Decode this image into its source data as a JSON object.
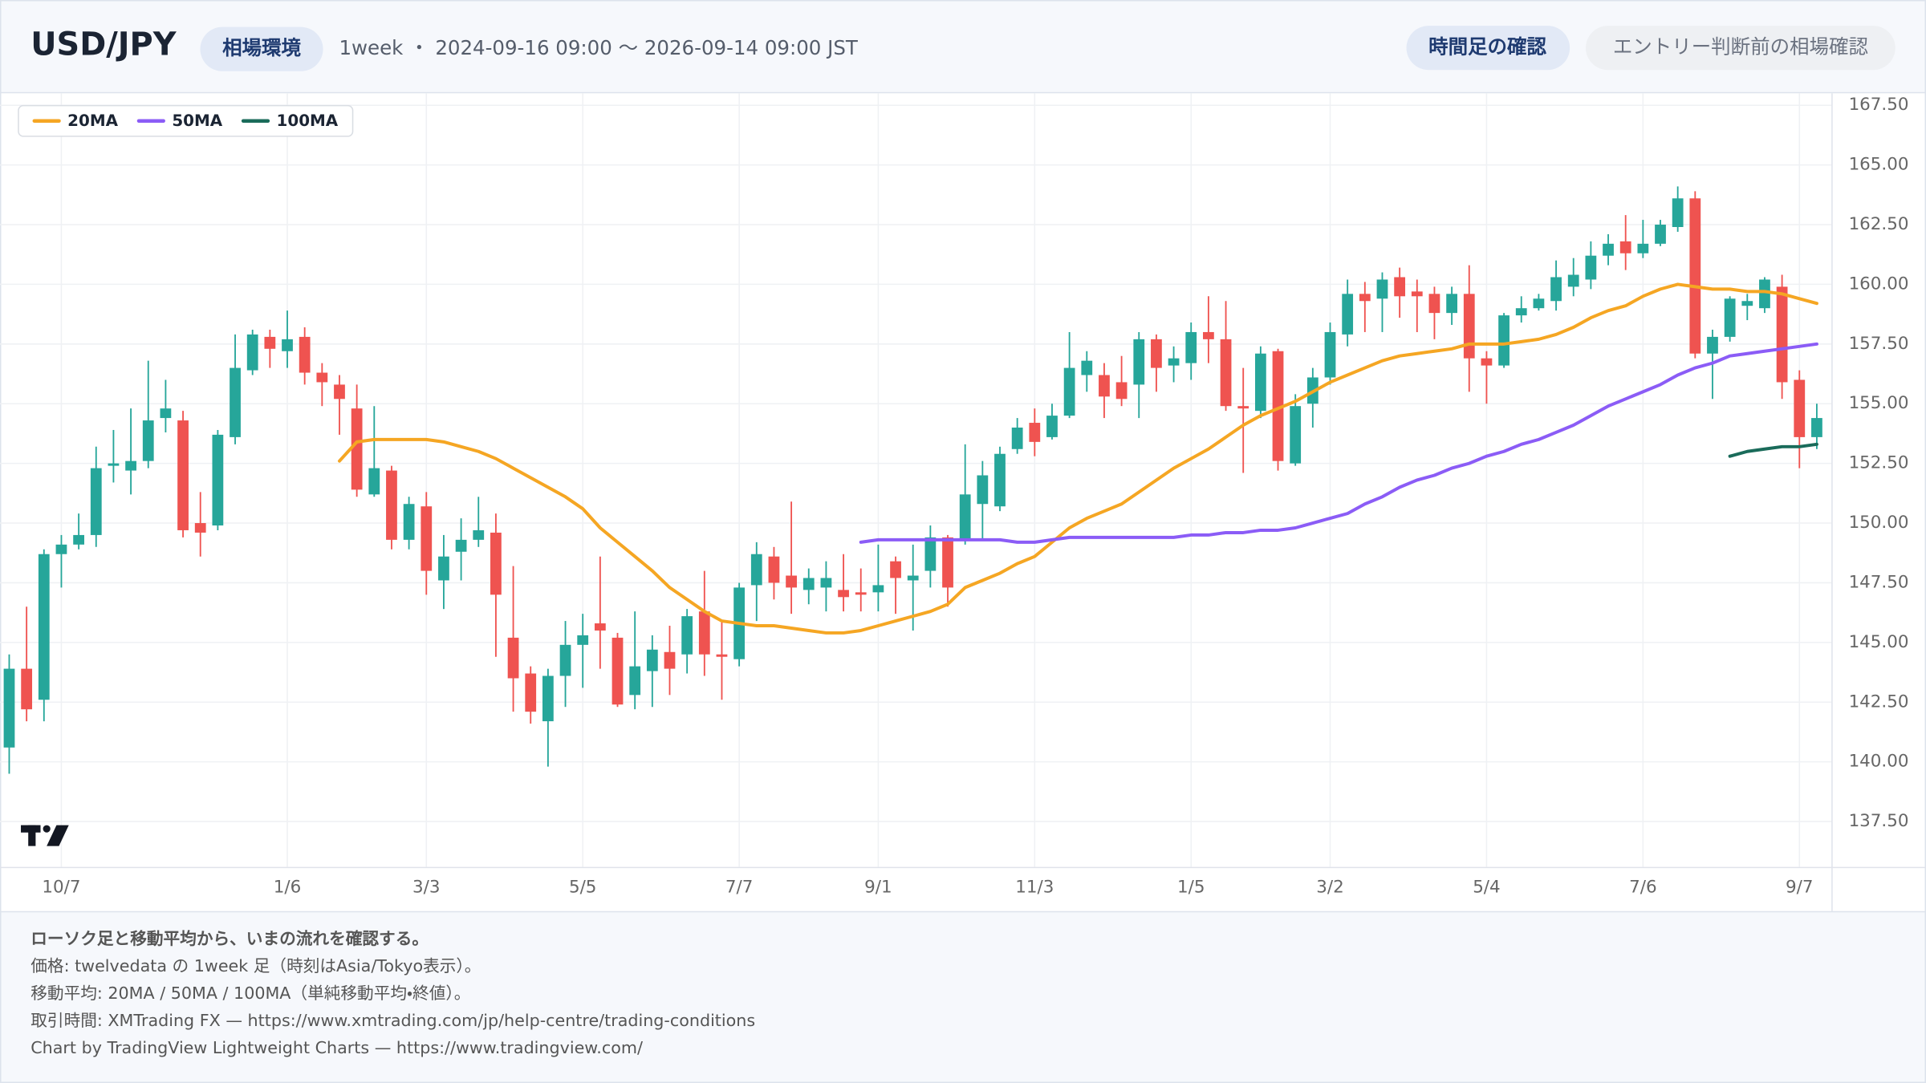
{
  "header": {
    "title": "USD/JPY",
    "badge": "相場環境",
    "subtitle": "1week ・ 2024-09-16 09:00 〜 2026-09-14 09:00 JST",
    "tags": [
      "時間足の確認",
      "エントリー判断前の相場確認"
    ]
  },
  "chart_data": {
    "type": "candlestick",
    "categories": [
      null,
      null,
      null,
      "10/7",
      null,
      null,
      null,
      null,
      null,
      null,
      null,
      null,
      null,
      null,
      null,
      null,
      "1/6",
      null,
      null,
      null,
      null,
      null,
      null,
      null,
      "3/3",
      null,
      null,
      null,
      null,
      null,
      null,
      null,
      null,
      "5/5",
      null,
      null,
      null,
      null,
      null,
      null,
      null,
      null,
      "7/7",
      null,
      null,
      null,
      null,
      null,
      null,
      null,
      "9/1",
      null,
      null,
      null,
      null,
      null,
      null,
      null,
      null,
      "11/3",
      null,
      null,
      null,
      null,
      null,
      null,
      null,
      null,
      "1/5",
      null,
      null,
      null,
      null,
      null,
      null,
      null,
      "3/2",
      null,
      null,
      null,
      null,
      null,
      null,
      null,
      null,
      "5/4",
      null,
      null,
      null,
      null,
      null,
      null,
      null,
      null,
      "7/6",
      null,
      null,
      null,
      null,
      null,
      null,
      null,
      null,
      "9/7",
      null
    ],
    "open": [
      140.6,
      143.9,
      142.6,
      148.7,
      149.1,
      149.5,
      152.4,
      152.2,
      152.6,
      154.4,
      154.3,
      150.0,
      149.9,
      153.6,
      156.4,
      157.8,
      157.2,
      157.8,
      156.3,
      155.8,
      154.8,
      151.2,
      152.2,
      149.3,
      150.7,
      147.6,
      148.8,
      149.3,
      149.6,
      145.2,
      143.7,
      141.7,
      143.6,
      144.9,
      145.8,
      145.2,
      142.8,
      143.8,
      144.6,
      144.5,
      146.3,
      144.5,
      144.3,
      147.4,
      148.6,
      147.8,
      147.2,
      147.3,
      147.2,
      147.1,
      147.1,
      148.4,
      147.6,
      148.0,
      149.4,
      149.3,
      150.8,
      150.7,
      153.1,
      154.2,
      153.6,
      154.5,
      156.2,
      156.2,
      155.9,
      155.8,
      157.7,
      156.6,
      156.7,
      158.0,
      157.7,
      154.9,
      154.7,
      157.2,
      152.5,
      155.0,
      156.1,
      157.9,
      159.6,
      159.4,
      160.3,
      159.7,
      159.6,
      158.8,
      159.6,
      156.9,
      156.6,
      158.7,
      159.0,
      159.3,
      159.9,
      160.2,
      161.2,
      161.8,
      161.3,
      161.7,
      162.4,
      163.6,
      157.1,
      157.8,
      159.1,
      159.0,
      159.9,
      156.0,
      153.6
    ],
    "high": [
      144.5,
      146.5,
      148.9,
      149.5,
      150.4,
      153.2,
      153.9,
      154.8,
      156.8,
      156.0,
      154.7,
      151.3,
      153.9,
      157.9,
      158.1,
      158.1,
      158.9,
      158.2,
      156.7,
      156.2,
      155.8,
      154.9,
      152.4,
      151.1,
      151.3,
      149.5,
      150.2,
      151.1,
      150.4,
      148.2,
      144.0,
      143.9,
      145.9,
      146.2,
      148.6,
      145.4,
      146.3,
      145.3,
      145.7,
      146.4,
      148.0,
      145.9,
      147.5,
      149.2,
      149.0,
      150.9,
      148.1,
      148.4,
      148.7,
      148.1,
      149.1,
      148.6,
      149.1,
      149.9,
      149.5,
      153.3,
      152.6,
      153.2,
      154.4,
      154.8,
      155.0,
      158.0,
      157.2,
      156.7,
      157.0,
      158.0,
      157.9,
      157.4,
      158.4,
      159.5,
      159.3,
      156.5,
      157.4,
      157.3,
      155.4,
      156.5,
      158.4,
      160.2,
      160.1,
      160.5,
      160.7,
      160.2,
      159.9,
      159.9,
      160.8,
      157.2,
      158.8,
      159.5,
      159.6,
      161.0,
      161.1,
      161.8,
      162.1,
      162.9,
      162.7,
      162.7,
      164.1,
      163.9,
      158.1,
      159.5,
      159.6,
      160.3,
      160.4,
      156.4,
      155.0
    ],
    "low": [
      139.5,
      141.7,
      141.7,
      147.3,
      148.9,
      149.0,
      151.7,
      151.2,
      152.3,
      153.8,
      149.4,
      148.6,
      149.7,
      153.3,
      156.2,
      156.5,
      156.5,
      155.8,
      154.9,
      153.7,
      151.1,
      151.1,
      148.9,
      148.9,
      147.0,
      146.4,
      147.6,
      149.0,
      144.4,
      142.1,
      141.6,
      139.8,
      142.3,
      143.1,
      143.9,
      142.3,
      142.2,
      142.3,
      142.8,
      143.7,
      143.6,
      142.6,
      144.0,
      145.9,
      146.8,
      146.2,
      146.6,
      146.3,
      146.3,
      146.3,
      146.3,
      146.2,
      145.5,
      147.3,
      146.5,
      149.1,
      149.3,
      150.5,
      152.9,
      152.8,
      153.5,
      154.4,
      155.5,
      154.4,
      154.9,
      154.4,
      155.5,
      155.9,
      156.0,
      156.7,
      154.7,
      152.1,
      154.4,
      152.2,
      152.4,
      154.0,
      155.8,
      157.4,
      158.0,
      158.0,
      158.6,
      158.0,
      157.7,
      158.3,
      155.5,
      155.0,
      156.5,
      158.4,
      158.9,
      158.9,
      159.5,
      159.8,
      160.8,
      160.6,
      161.1,
      161.6,
      162.2,
      156.9,
      155.2,
      157.6,
      158.5,
      158.8,
      155.2,
      152.3,
      153.1
    ],
    "close": [
      143.9,
      142.2,
      148.7,
      149.1,
      149.5,
      152.3,
      152.5,
      152.6,
      154.3,
      154.8,
      149.7,
      149.6,
      153.7,
      156.5,
      157.9,
      157.3,
      157.7,
      156.3,
      155.9,
      155.2,
      151.4,
      152.3,
      149.3,
      150.8,
      148.0,
      148.6,
      149.3,
      149.7,
      147.0,
      143.5,
      142.1,
      143.6,
      144.9,
      145.3,
      145.5,
      142.4,
      144.0,
      144.7,
      143.9,
      146.1,
      144.5,
      144.4,
      147.3,
      148.7,
      147.5,
      147.3,
      147.7,
      147.7,
      146.9,
      147.0,
      147.4,
      147.7,
      147.8,
      149.4,
      147.3,
      151.2,
      152.0,
      152.9,
      154.0,
      153.4,
      154.5,
      156.5,
      156.8,
      155.3,
      155.2,
      157.7,
      156.5,
      156.9,
      158.0,
      157.7,
      154.9,
      154.8,
      157.1,
      152.6,
      154.9,
      156.1,
      158.0,
      159.6,
      159.3,
      160.2,
      159.5,
      159.5,
      158.8,
      159.6,
      156.9,
      156.6,
      158.7,
      159.0,
      159.4,
      160.3,
      160.4,
      161.2,
      161.7,
      161.3,
      161.7,
      162.5,
      163.6,
      157.1,
      157.8,
      159.4,
      159.3,
      160.2,
      155.9,
      153.6,
      154.4
    ],
    "up_color": "#26a69a",
    "down_color": "#ef5350",
    "series": [
      {
        "name": "20MA",
        "color": "#f5a623",
        "values": [
          null,
          null,
          null,
          null,
          null,
          null,
          null,
          null,
          null,
          null,
          null,
          null,
          null,
          null,
          null,
          null,
          null,
          null,
          null,
          152.6,
          153.4,
          153.5,
          153.5,
          153.5,
          153.5,
          153.4,
          153.2,
          153.0,
          152.7,
          152.3,
          151.9,
          151.5,
          151.1,
          150.6,
          149.8,
          149.2,
          148.6,
          148.0,
          147.3,
          146.8,
          146.3,
          145.9,
          145.8,
          145.7,
          145.7,
          145.6,
          145.5,
          145.4,
          145.4,
          145.5,
          145.7,
          145.9,
          146.1,
          146.3,
          146.6,
          147.3,
          147.6,
          147.9,
          148.3,
          148.6,
          149.2,
          149.8,
          150.2,
          150.5,
          150.8,
          151.3,
          151.8,
          152.3,
          152.7,
          153.1,
          153.6,
          154.1,
          154.5,
          154.8,
          155.1,
          155.5,
          155.9,
          156.2,
          156.5,
          156.8,
          157.0,
          157.1,
          157.2,
          157.3,
          157.5,
          157.5,
          157.5,
          157.6,
          157.7,
          157.9,
          158.2,
          158.6,
          158.9,
          159.1,
          159.5,
          159.8,
          160.0,
          159.9,
          159.8,
          159.8,
          159.7,
          159.7,
          159.6,
          159.4,
          159.2
        ]
      },
      {
        "name": "50MA",
        "color": "#8b5cf6",
        "values": [
          null,
          null,
          null,
          null,
          null,
          null,
          null,
          null,
          null,
          null,
          null,
          null,
          null,
          null,
          null,
          null,
          null,
          null,
          null,
          null,
          null,
          null,
          null,
          null,
          null,
          null,
          null,
          null,
          null,
          null,
          null,
          null,
          null,
          null,
          null,
          null,
          null,
          null,
          null,
          null,
          null,
          null,
          null,
          null,
          null,
          null,
          null,
          null,
          null,
          149.2,
          149.3,
          149.3,
          149.3,
          149.3,
          149.3,
          149.3,
          149.3,
          149.3,
          149.2,
          149.2,
          149.3,
          149.4,
          149.4,
          149.4,
          149.4,
          149.4,
          149.4,
          149.4,
          149.5,
          149.5,
          149.6,
          149.6,
          149.7,
          149.7,
          149.8,
          150.0,
          150.2,
          150.4,
          150.8,
          151.1,
          151.5,
          151.8,
          152.0,
          152.3,
          152.5,
          152.8,
          153.0,
          153.3,
          153.5,
          153.8,
          154.1,
          154.5,
          154.9,
          155.2,
          155.5,
          155.8,
          156.2,
          156.5,
          156.7,
          157.0,
          157.1,
          157.2,
          157.3,
          157.4,
          157.5
        ]
      },
      {
        "name": "100MA",
        "color": "#1a6b5a",
        "values": [
          null,
          null,
          null,
          null,
          null,
          null,
          null,
          null,
          null,
          null,
          null,
          null,
          null,
          null,
          null,
          null,
          null,
          null,
          null,
          null,
          null,
          null,
          null,
          null,
          null,
          null,
          null,
          null,
          null,
          null,
          null,
          null,
          null,
          null,
          null,
          null,
          null,
          null,
          null,
          null,
          null,
          null,
          null,
          null,
          null,
          null,
          null,
          null,
          null,
          null,
          null,
          null,
          null,
          null,
          null,
          null,
          null,
          null,
          null,
          null,
          null,
          null,
          null,
          null,
          null,
          null,
          null,
          null,
          null,
          null,
          null,
          null,
          null,
          null,
          null,
          null,
          null,
          null,
          null,
          null,
          null,
          null,
          null,
          null,
          null,
          null,
          null,
          null,
          null,
          null,
          null,
          null,
          null,
          null,
          null,
          null,
          null,
          null,
          null,
          152.8,
          153.0,
          153.1,
          153.2,
          153.2,
          153.3
        ]
      }
    ],
    "ylim": [
      135.6,
      168.0
    ],
    "yticks": [
      {
        "value": 137.5,
        "label": "137.50"
      },
      {
        "value": 140,
        "label": "140.00"
      },
      {
        "value": 142.5,
        "label": "142.50"
      },
      {
        "value": 145,
        "label": "145.00"
      },
      {
        "value": 147.5,
        "label": "147.50"
      },
      {
        "value": 150,
        "label": "150.00"
      },
      {
        "value": 152.5,
        "label": "152.50"
      },
      {
        "value": 155,
        "label": "155.00"
      },
      {
        "value": 157.5,
        "label": "157.50"
      },
      {
        "value": 160,
        "label": "160.00"
      },
      {
        "value": 162.5,
        "label": "162.50"
      },
      {
        "value": 165,
        "label": "165.00"
      },
      {
        "value": 167.5,
        "label": "167.50"
      }
    ],
    "grid": true,
    "legend": "top-left"
  },
  "footer": {
    "lines": [
      "ローソク足と移動平均から、いまの流れを確認する。",
      "価格: twelvedata の 1week 足（時刻はAsia/Tokyo表示）。",
      "移動平均: 20MA / 50MA / 100MA（単純移動平均・終値）。",
      "取引時間: XMTrading FX — https://www.xmtrading.com/jp/help-centre/trading-conditions",
      "Chart by TradingView Lightweight Charts — https://www.tradingview.com/"
    ]
  }
}
